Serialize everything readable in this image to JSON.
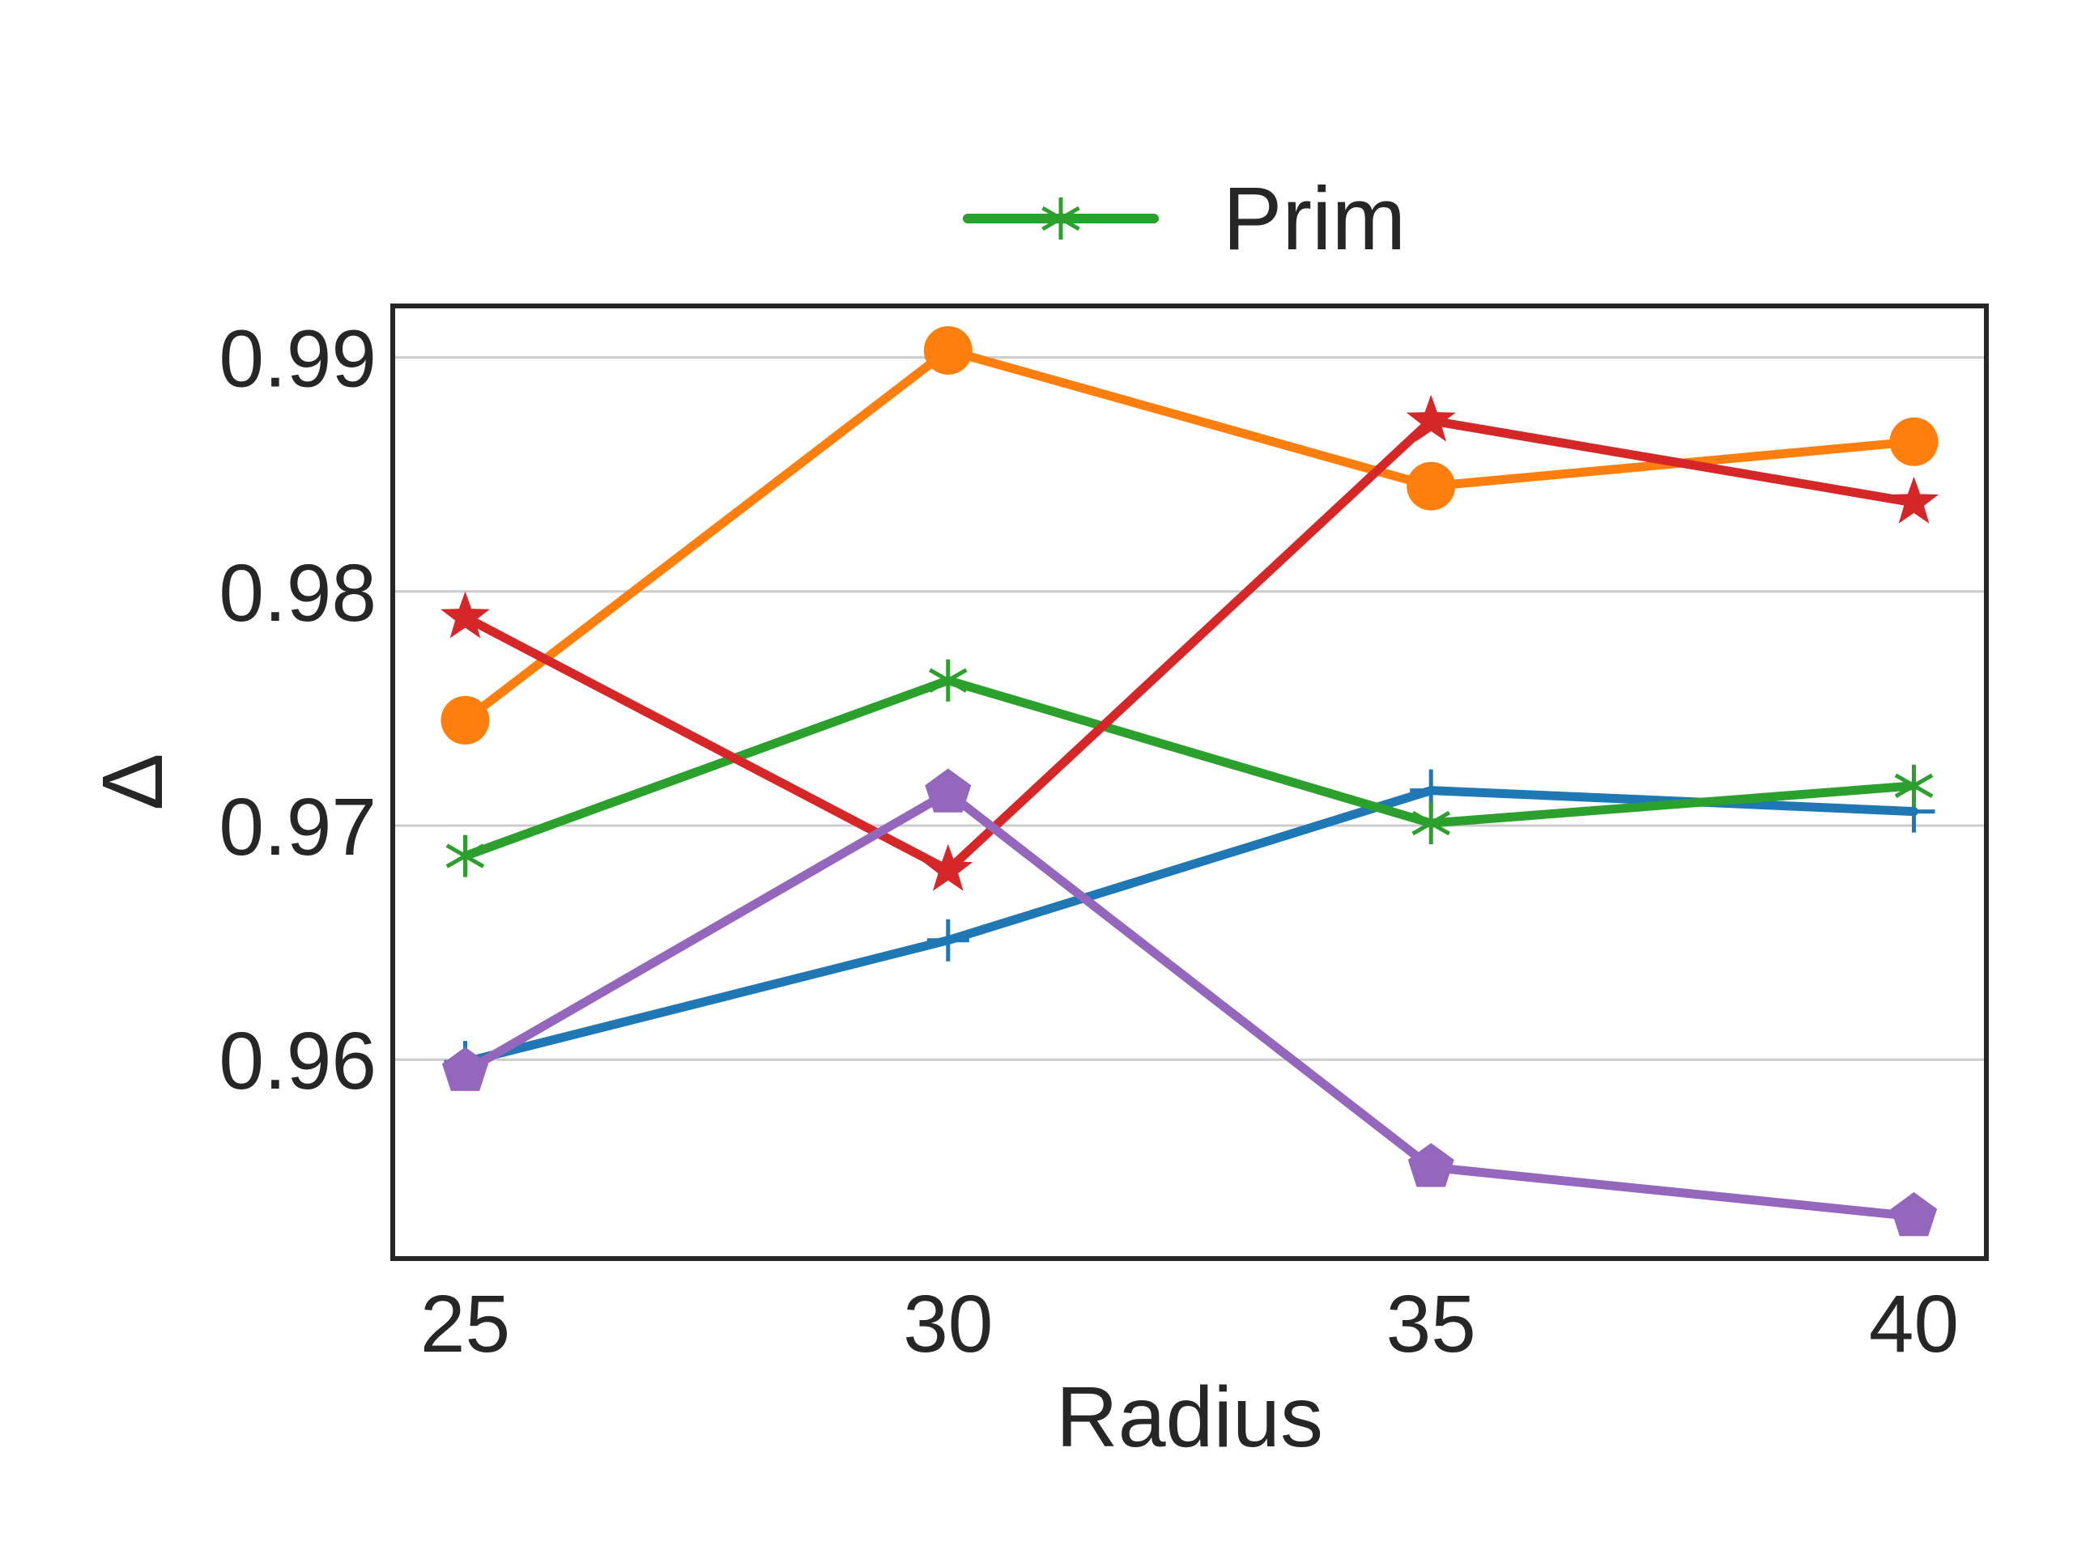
{
  "chart_data": {
    "type": "line",
    "title": "",
    "xlabel": "Radius",
    "ylabel": "Δ",
    "x": [
      25,
      30,
      35,
      40
    ],
    "x_ticks": [
      "25",
      "30",
      "35",
      "40"
    ],
    "y_ticks": [
      "0.96",
      "0.97",
      "0.98",
      "0.99"
    ],
    "y_tick_values": [
      0.96,
      0.97,
      0.98,
      0.99
    ],
    "xlim": [
      24.25,
      40.75
    ],
    "ylim": [
      0.9515,
      0.9922
    ],
    "grid": "horizontal",
    "legend": {
      "placement": "top-center",
      "entries": [
        "Prim"
      ]
    },
    "series": [
      {
        "values": [
          0.9599,
          0.9651,
          0.9715,
          0.9706
        ],
        "color": "#1f77b4",
        "marker": "plus"
      },
      {
        "values": [
          0.9745,
          0.9903,
          0.9845,
          0.9864
        ],
        "color": "#ff7f0e",
        "marker": "circle"
      },
      {
        "name": "Prim",
        "values": [
          0.9687,
          0.9762,
          0.9701,
          0.9717
        ],
        "color": "#2ca02c",
        "marker": "star-x"
      },
      {
        "values": [
          0.9789,
          0.9681,
          0.9873,
          0.9838
        ],
        "color": "#d62728",
        "marker": "star"
      },
      {
        "values": [
          0.9595,
          0.9714,
          0.9554,
          0.9533
        ],
        "color": "#9467bd",
        "marker": "pentagon"
      }
    ]
  }
}
